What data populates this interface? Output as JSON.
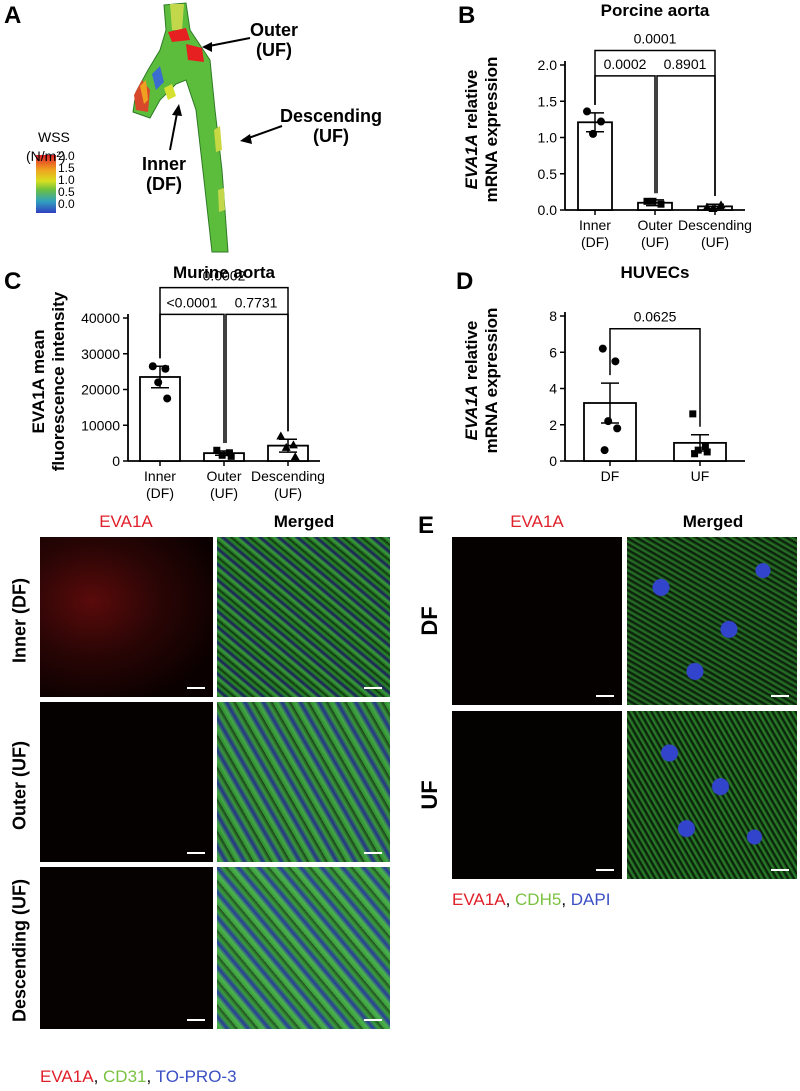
{
  "panels": {
    "A": {
      "letter": "A",
      "wss_title": "WSS",
      "wss_unit": "(N/m²)",
      "colorbar_ticks": [
        "2.0",
        "1.5",
        "1.0",
        "0.5",
        "0.0"
      ],
      "labels": {
        "outer": [
          "Outer",
          "(UF)"
        ],
        "inner": [
          "Inner",
          "(DF)"
        ],
        "descending": [
          "Descending",
          "(UF)"
        ]
      }
    },
    "B": {
      "letter": "B"
    },
    "C": {
      "letter": "C"
    },
    "D": {
      "letter": "D"
    },
    "E": {
      "letter": "E"
    }
  },
  "chart_data": [
    {
      "id": "B",
      "type": "bar",
      "title": "Porcine aorta",
      "ylabel_italic": "EVA1A",
      "ylabel_rest": " relative",
      "ylabel_line2": "mRNA expression",
      "categories": [
        [
          "Inner",
          "(DF)"
        ],
        [
          "Outer",
          "(UF)"
        ],
        [
          "Descending",
          "(UF)"
        ]
      ],
      "values": [
        1.21,
        0.1,
        0.05
      ],
      "errors": [
        0.13,
        0.04,
        0.03
      ],
      "points": [
        [
          1.36,
          1.22,
          1.05
        ],
        [
          0.12,
          0.08,
          0.12
        ],
        [
          0.04,
          0.07,
          0.02
        ]
      ],
      "markers": [
        "circle",
        "square",
        "triangle"
      ],
      "ylim": [
        0,
        2.0
      ],
      "yticks": [
        "0.0",
        "0.5",
        "1.0",
        "1.5",
        "2.0"
      ],
      "comparisons": [
        {
          "from": 0,
          "to": 1,
          "label": "0.0002",
          "level": 1.85
        },
        {
          "from": 1,
          "to": 2,
          "label": "0.8901",
          "level": 1.85
        },
        {
          "from": 0,
          "to": 2,
          "label": "0.0001",
          "level": 2.2
        }
      ]
    },
    {
      "id": "C",
      "type": "bar",
      "title": "Murine aorta",
      "ylabel_line1": "EVA1A mean",
      "ylabel_line2": "fluorescence intensity",
      "categories": [
        [
          "Inner",
          "(DF)"
        ],
        [
          "Outer",
          "(UF)"
        ],
        [
          "Descending",
          "(UF)"
        ]
      ],
      "values": [
        23500,
        2200,
        4300
      ],
      "errors": [
        3000,
        600,
        1800
      ],
      "points": [
        [
          26500,
          25800,
          22000,
          17500
        ],
        [
          3000,
          2300,
          1600,
          1300
        ],
        [
          7000,
          4500,
          3800,
          1200
        ]
      ],
      "markers": [
        "circle",
        "square",
        "triangle"
      ],
      "ylim": [
        0,
        40000
      ],
      "yticks": [
        "0",
        "10000",
        "20000",
        "30000",
        "40000"
      ],
      "comparisons": [
        {
          "from": 0,
          "to": 1,
          "label": "<0.0001",
          "level": 41000
        },
        {
          "from": 1,
          "to": 2,
          "label": "0.7731",
          "level": 41000
        },
        {
          "from": 0,
          "to": 2,
          "label": "0.0002",
          "level": 48500
        }
      ]
    },
    {
      "id": "D",
      "type": "bar",
      "title": "HUVECs",
      "ylabel_italic": "EVA1A",
      "ylabel_rest": " relative",
      "ylabel_line2": "mRNA expression",
      "categories": [
        [
          "DF"
        ],
        [
          "UF"
        ]
      ],
      "values": [
        3.2,
        1.0
      ],
      "errors": [
        1.1,
        0.45
      ],
      "points": [
        [
          6.2,
          5.5,
          2.2,
          1.8,
          0.6
        ],
        [
          2.6,
          0.8,
          0.6,
          0.5,
          0.4
        ]
      ],
      "markers": [
        "circle",
        "square"
      ],
      "ylim": [
        0,
        8
      ],
      "yticks": [
        "0",
        "2",
        "4",
        "6",
        "8"
      ],
      "comparisons": [
        {
          "from": 0,
          "to": 1,
          "label": "0.0625",
          "level": 7.3
        }
      ]
    }
  ],
  "microscopy_C": {
    "col_labels": [
      "EVA1A",
      "Merged"
    ],
    "row_labels": [
      "Inner (DF)",
      "Outer (UF)",
      "Descending (UF)"
    ],
    "legend": [
      {
        "text": "EVA1A",
        "color": "#e0202a"
      },
      {
        "text": ", ",
        "color": "#000000"
      },
      {
        "text": "CD31",
        "color": "#7cc242"
      },
      {
        "text": ", ",
        "color": "#000000"
      },
      {
        "text": "TO-PRO-3",
        "color": "#3b4fc4"
      }
    ]
  },
  "microscopy_E": {
    "col_labels": [
      "EVA1A",
      "Merged"
    ],
    "row_labels": [
      "DF",
      "UF"
    ],
    "legend": [
      {
        "text": "EVA1A",
        "color": "#e0202a"
      },
      {
        "text": ", ",
        "color": "#000000"
      },
      {
        "text": "CDH5",
        "color": "#7cc242"
      },
      {
        "text": ", ",
        "color": "#000000"
      },
      {
        "text": "DAPI",
        "color": "#3b4fc4"
      }
    ]
  },
  "colors": {
    "red_label": "#e0202a",
    "green": "#7cc242",
    "blue": "#3b4fc4"
  }
}
